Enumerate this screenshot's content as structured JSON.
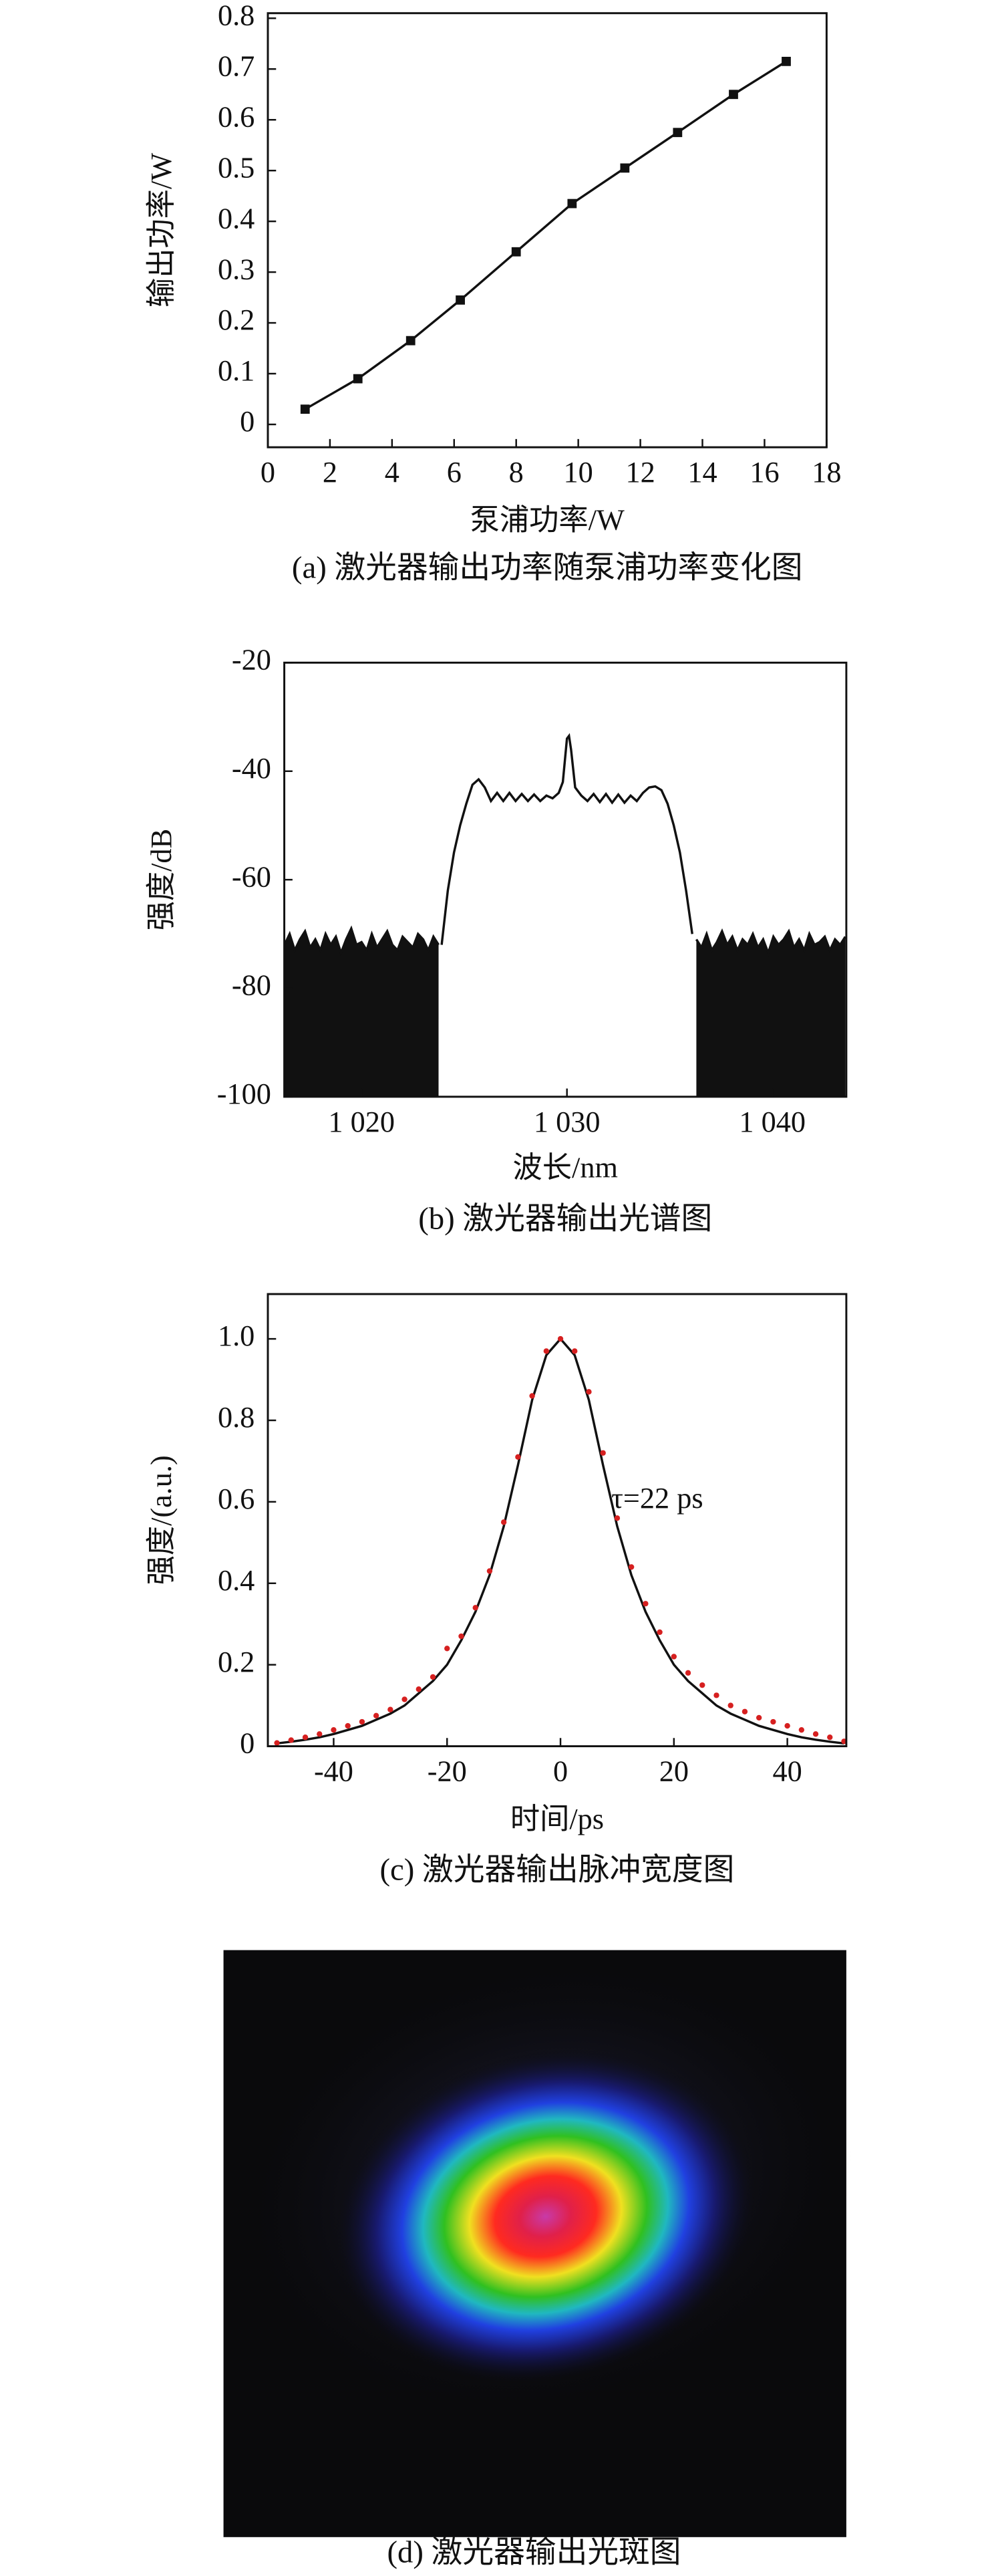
{
  "chart_data": [
    {
      "type": "line",
      "caption": "(a) 激光器输出功率随泵浦功率变化图",
      "x_label": "泵浦功率/W",
      "y_label": "输出功率/W",
      "x": [
        1.2,
        2.9,
        4.6,
        6.2,
        8.0,
        9.8,
        11.5,
        13.2,
        15.0,
        16.7
      ],
      "series": [
        {
          "color": "#111111",
          "marker": "square",
          "values": [
            0.03,
            0.09,
            0.165,
            0.245,
            0.34,
            0.435,
            0.505,
            0.575,
            0.65,
            0.715
          ]
        }
      ],
      "xlim": [
        0,
        18
      ],
      "xticks": [
        0,
        2,
        4,
        6,
        8,
        10,
        12,
        14,
        16,
        18
      ],
      "ylim": [
        -0.045,
        0.81
      ],
      "yticks": [
        0,
        0.1,
        0.2,
        0.3,
        0.4,
        0.5,
        0.6,
        0.7,
        0.8
      ]
    },
    {
      "type": "line",
      "caption": "(b) 激光器输出光谱图",
      "x_label": "波长/nm",
      "y_label": "强度/dB",
      "series": [
        {
          "color": "#111111",
          "fill": true,
          "x": [
            1016.25,
            1016.5,
            1016.75,
            1017,
            1017.25,
            1017.5,
            1017.75,
            1018,
            1018.25,
            1018.5,
            1018.75,
            1019,
            1019.25,
            1019.5,
            1019.75,
            1020,
            1020.25,
            1020.5,
            1020.75,
            1021,
            1021.25,
            1021.5,
            1021.75,
            1022,
            1022.25,
            1022.5,
            1022.75,
            1023,
            1023.25,
            1023.5,
            1023.75
          ],
          "values": [
            -72,
            -70,
            -73,
            -71,
            -69.5,
            -72.5,
            -71,
            -73,
            -70,
            -72,
            -70.5,
            -73.5,
            -71,
            -69,
            -72,
            -71.5,
            -73,
            -70,
            -72.5,
            -71,
            -69.5,
            -72,
            -73,
            -70.5,
            -71.5,
            -72.5,
            -70,
            -71,
            -73,
            -70.5,
            -72
          ]
        },
        {
          "color": "#111111",
          "x": [
            1023.9,
            1024.2,
            1024.5,
            1024.8,
            1025.1,
            1025.4,
            1025.7,
            1026.0,
            1026.3,
            1026.6,
            1026.9,
            1027.2,
            1027.5,
            1027.8,
            1028.1,
            1028.4,
            1028.7,
            1029.0,
            1029.3,
            1029.6,
            1029.8,
            1030.0,
            1030.1,
            1030.2,
            1030.4,
            1030.7,
            1031.0,
            1031.3,
            1031.6,
            1031.9,
            1032.2,
            1032.5,
            1032.8,
            1033.1,
            1033.4,
            1033.7,
            1034.0,
            1034.3,
            1034.6,
            1034.9,
            1035.2,
            1035.5,
            1035.8,
            1036.1
          ],
          "values": [
            -72,
            -62,
            -55,
            -50,
            -46,
            -42.5,
            -41.5,
            -43,
            -45.5,
            -44,
            -45.5,
            -44,
            -45.5,
            -44.2,
            -45.5,
            -44.3,
            -45.5,
            -44.5,
            -45,
            -44,
            -42,
            -34,
            -33.5,
            -36,
            -43,
            -44.5,
            -45.5,
            -44.2,
            -45.7,
            -44.2,
            -45.8,
            -44.3,
            -45.8,
            -44.5,
            -45.5,
            -44,
            -43,
            -42.8,
            -43.5,
            -46,
            -50,
            -55,
            -62,
            -70
          ]
        },
        {
          "color": "#111111",
          "fill": true,
          "x": [
            1036.3,
            1036.55,
            1036.8,
            1037.05,
            1037.3,
            1037.55,
            1037.8,
            1038.05,
            1038.3,
            1038.55,
            1038.8,
            1039.05,
            1039.3,
            1039.55,
            1039.8,
            1040.05,
            1040.3,
            1040.55,
            1040.8,
            1041.05,
            1041.3,
            1041.55,
            1041.8,
            1042.05,
            1042.3,
            1042.55,
            1042.8,
            1043.05,
            1043.3,
            1043.55
          ],
          "values": [
            -71,
            -72.5,
            -70,
            -73,
            -71.5,
            -69.5,
            -72,
            -70.5,
            -73,
            -71,
            -72,
            -70,
            -72.5,
            -71,
            -73.5,
            -70.5,
            -72,
            -71,
            -69.5,
            -72.5,
            -71,
            -73,
            -70,
            -72,
            -71.5,
            -70.5,
            -73,
            -71,
            -72,
            -70.5
          ]
        }
      ],
      "xlim": [
        1016.24,
        1043.6
      ],
      "xticks": [
        {
          "value": 1020,
          "label": "1 020"
        },
        {
          "value": 1030,
          "label": "1 030"
        },
        {
          "value": 1040,
          "label": "1 040"
        }
      ],
      "ylim": [
        -100,
        -20
      ],
      "yticks": [
        -100,
        -80,
        -60,
        -40,
        -20
      ]
    },
    {
      "type": "line",
      "caption": "(c) 激光器输出脉冲宽度图",
      "x_label": "时间/ps",
      "y_label": "强度/(a.u.)",
      "annotation": "τ=22 ps",
      "x": [
        -50,
        -47.5,
        -45,
        -42.5,
        -40,
        -37.5,
        -35,
        -32.5,
        -30,
        -27.5,
        -25,
        -22.5,
        -20,
        -17.5,
        -15,
        -12.5,
        -10,
        -7.5,
        -5,
        -2.5,
        0,
        2.5,
        5,
        7.5,
        10,
        12.5,
        15,
        17.5,
        20,
        22.5,
        25,
        27.5,
        30,
        32.5,
        35,
        37.5,
        40,
        42.5,
        45,
        47.5,
        50
      ],
      "series": [
        {
          "color": "#111111",
          "values": [
            0.007,
            0.011,
            0.016,
            0.022,
            0.03,
            0.04,
            0.05,
            0.065,
            0.08,
            0.1,
            0.13,
            0.16,
            0.2,
            0.26,
            0.33,
            0.42,
            0.54,
            0.69,
            0.85,
            0.96,
            1.0,
            0.96,
            0.85,
            0.69,
            0.54,
            0.42,
            0.33,
            0.26,
            0.2,
            0.16,
            0.13,
            0.1,
            0.08,
            0.065,
            0.05,
            0.04,
            0.03,
            0.022,
            0.016,
            0.011,
            0.007
          ]
        },
        {
          "color": "#d62020",
          "mode": "markers",
          "values": [
            0.008,
            0.015,
            0.022,
            0.03,
            0.04,
            0.05,
            0.06,
            0.075,
            0.09,
            0.115,
            0.14,
            0.17,
            0.24,
            0.27,
            0.34,
            0.43,
            0.55,
            0.71,
            0.86,
            0.97,
            1.0,
            0.97,
            0.87,
            0.72,
            0.56,
            0.44,
            0.35,
            0.28,
            0.22,
            0.18,
            0.15,
            0.125,
            0.1,
            0.085,
            0.07,
            0.06,
            0.05,
            0.04,
            0.03,
            0.022,
            0.012
          ]
        }
      ],
      "xlim": [
        -51.6,
        50.4
      ],
      "xticks": [
        -40,
        -20,
        0,
        20,
        40
      ],
      "ylim": [
        0,
        1.11
      ],
      "yticks": [
        0,
        0.2,
        0.4,
        0.6,
        0.8,
        {
          "value": 1,
          "label": "1.0"
        }
      ]
    }
  ],
  "image_panel": {
    "caption": "(d) 激光器输出光斑图"
  }
}
